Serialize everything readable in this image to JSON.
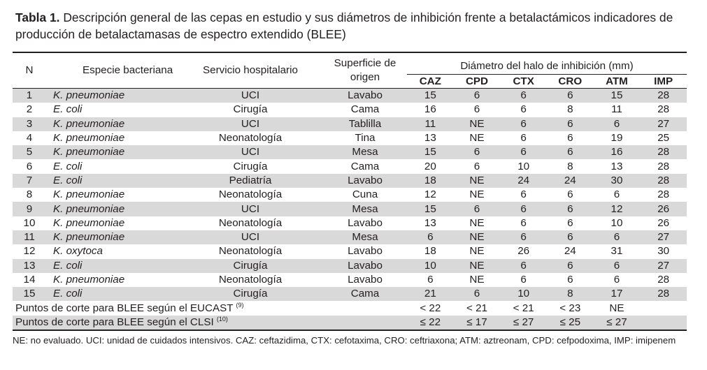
{
  "title": {
    "label": "Tabla 1.",
    "text": "Descripción general de las cepas en estudio y sus diámetros de inhibición frente a betalactámicos indicadores de producción de betalactamasas de espectro extendido (BLEE)"
  },
  "header": {
    "n": "N",
    "especie": "Especie bacteriana",
    "servicio": "Servicio hospitalario",
    "superficie_line1": "Superficie de",
    "superficie_line2": "origen",
    "diametro": "Diámetro del halo de inhibición (mm)",
    "antibiotics": [
      "CAZ",
      "CPD",
      "CTX",
      "CRO",
      "ATM",
      "IMP"
    ]
  },
  "rows": [
    {
      "n": "1",
      "genus": "K.",
      "species": "pneumoniae",
      "servicio": "UCI",
      "superficie": "Lavabo",
      "values": [
        "15",
        "6",
        "6",
        "6",
        "15",
        "28"
      ]
    },
    {
      "n": "2",
      "genus": "E.",
      "species": "coli",
      "servicio": "Cirugía",
      "superficie": "Cama",
      "values": [
        "16",
        "6",
        "6",
        "8",
        "11",
        "28"
      ]
    },
    {
      "n": "3",
      "genus": "K.",
      "species": "pneumoniae",
      "servicio": "UCI",
      "superficie": "Tablilla",
      "values": [
        "11",
        "NE",
        "6",
        "6",
        "6",
        "27"
      ]
    },
    {
      "n": "4",
      "genus": "K.",
      "species": "pneumoniae",
      "servicio": "Neonatología",
      "superficie": "Tina",
      "values": [
        "13",
        "NE",
        "6",
        "6",
        "19",
        "25"
      ]
    },
    {
      "n": "5",
      "genus": "K.",
      "species": "pneumoniae",
      "servicio": "UCI",
      "superficie": "Mesa",
      "values": [
        "15",
        "6",
        "6",
        "6",
        "16",
        "28"
      ]
    },
    {
      "n": "6",
      "genus": "E.",
      "species": "coli",
      "servicio": "Cirugía",
      "superficie": "Cama",
      "values": [
        "20",
        "6",
        "10",
        "8",
        "13",
        "28"
      ]
    },
    {
      "n": "7",
      "genus": "E.",
      "species": "coli",
      "servicio": "Pediatría",
      "superficie": "Lavabo",
      "values": [
        "18",
        "NE",
        "24",
        "24",
        "30",
        "28"
      ]
    },
    {
      "n": "8",
      "genus": "K.",
      "species": "pneumoniae",
      "servicio": "Neonatología",
      "superficie": "Cuna",
      "values": [
        "12",
        "NE",
        "6",
        "6",
        "6",
        "28"
      ]
    },
    {
      "n": "9",
      "genus": "K.",
      "species": "pneumoniae",
      "servicio": "UCI",
      "superficie": "Mesa",
      "values": [
        "15",
        "6",
        "6",
        "6",
        "12",
        "26"
      ]
    },
    {
      "n": "10",
      "genus": "K.",
      "species": "pneumoniae",
      "servicio": "Neonatología",
      "superficie": "Lavabo",
      "values": [
        "13",
        "NE",
        "6",
        "6",
        "10",
        "26"
      ]
    },
    {
      "n": "11",
      "genus": "K.",
      "species": "pneumoniae",
      "servicio": "UCI",
      "superficie": "Mesa",
      "values": [
        "6",
        "NE",
        "6",
        "6",
        "6",
        "27"
      ]
    },
    {
      "n": "12",
      "genus": "K.",
      "species": "oxytoca",
      "servicio": "Neonatología",
      "superficie": "Lavabo",
      "values": [
        "18",
        "NE",
        "26",
        "24",
        "31",
        "30"
      ]
    },
    {
      "n": "13",
      "genus": "E.",
      "species": "coli",
      "servicio": "Cirugía",
      "superficie": "Lavabo",
      "values": [
        "10",
        "NE",
        "6",
        "6",
        "6",
        "27"
      ]
    },
    {
      "n": "14",
      "genus": "K.",
      "species": "pneumoniae",
      "servicio": "Neonatología",
      "superficie": "Lavabo",
      "values": [
        "6",
        "NE",
        "6",
        "6",
        "6",
        "28"
      ]
    },
    {
      "n": "15",
      "genus": "E.",
      "species": "coli",
      "servicio": "Cirugía",
      "superficie": "Cama",
      "values": [
        "21",
        "6",
        "10",
        "8",
        "17",
        "28"
      ]
    }
  ],
  "breakpoints": [
    {
      "label": "Puntos de corte para BLEE según el EUCAST",
      "ref": "(9)",
      "values": [
        "< 22",
        "< 21",
        "< 21",
        "< 23",
        "NE",
        ""
      ]
    },
    {
      "label": "Puntos de corte para BLEE según el CLSI",
      "ref": "(10)",
      "values": [
        "≤ 22",
        "≤ 17",
        "≤ 27",
        "≤ 25",
        "≤ 27",
        ""
      ]
    }
  ],
  "footnote": "NE: no evaluado. UCI: unidad de cuidados intensivos. CAZ: ceftazidima, CTX: cefotaxima, CRO: ceftriaxona; ATM: aztreonam, CPD: cefpodoxima, IMP: imipenem",
  "colors": {
    "shade": "#d9d9d9",
    "text": "#231f20"
  }
}
